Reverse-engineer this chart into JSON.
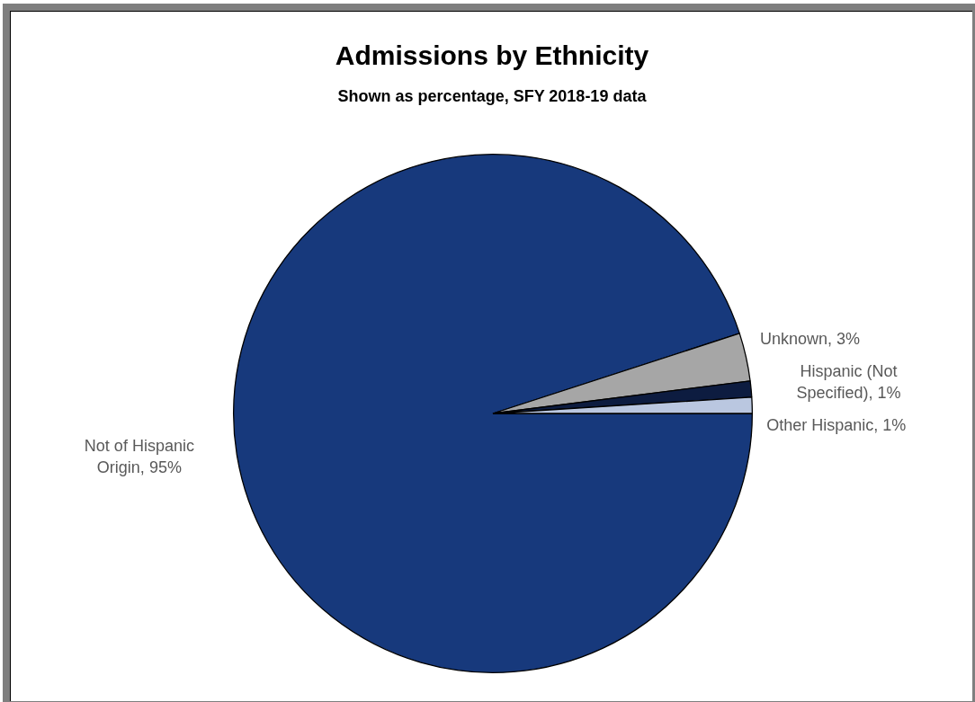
{
  "chart_data": {
    "type": "pie",
    "title": "Admissions by Ethnicity",
    "subtitle": "Shown as percentage, SFY 2018-19 data",
    "categories": [
      "Not of Hispanic Origin",
      "Unknown",
      "Hispanic (Not Specified)",
      "Other Hispanic"
    ],
    "values": [
      95,
      3,
      1,
      1
    ],
    "colors": [
      "#17397c",
      "#a6a6a6",
      "#0d1c40",
      "#bac7e0"
    ],
    "value_labels": [
      "95%",
      "3%",
      "1%",
      "1%"
    ]
  }
}
